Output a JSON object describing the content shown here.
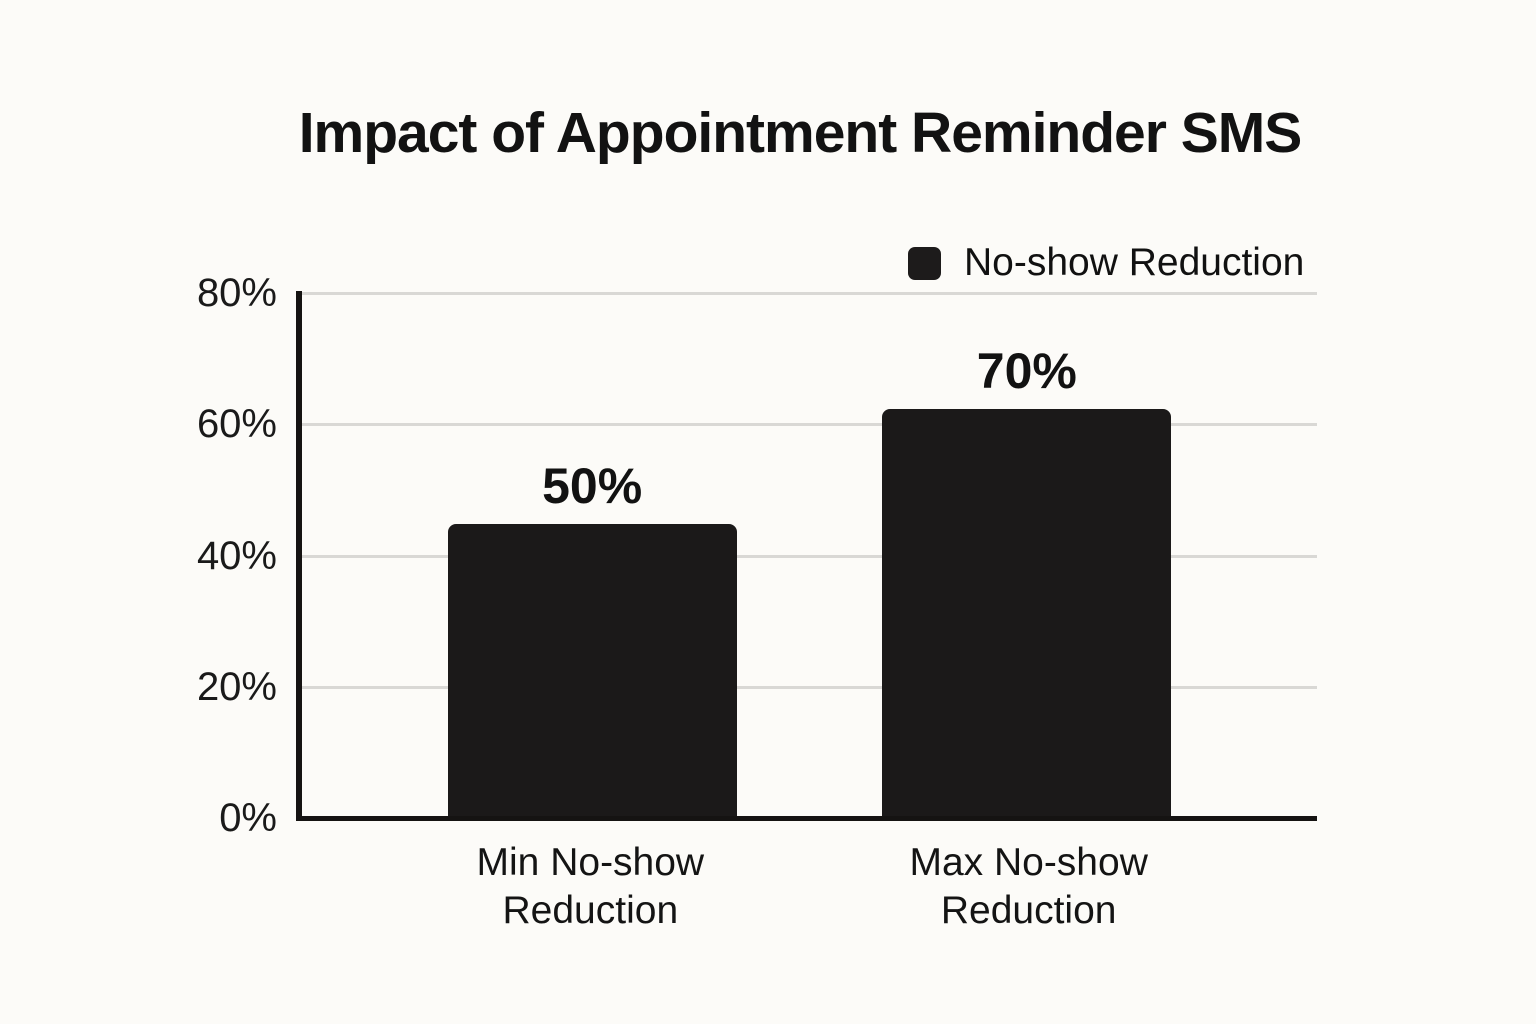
{
  "title": "Impact of Appointment Reminder SMS",
  "legend": {
    "label": "No-show Reduction",
    "swatch_color": "#1d1b1b"
  },
  "chart_data": {
    "type": "bar",
    "title": "Impact of Appointment Reminder SMS",
    "categories": [
      "Min No-show Reduction",
      "Max No-show Reduction"
    ],
    "series": [
      {
        "name": "No-show Reduction",
        "values": [
          50,
          70
        ]
      }
    ],
    "data_labels": [
      "50%",
      "70%"
    ],
    "rendered_bar_values": [
      44.8,
      62.3
    ],
    "xlabel": "",
    "ylabel": "",
    "y_axis": {
      "max": 80,
      "ticks": [
        0,
        20,
        40,
        60,
        80
      ],
      "tick_labels": [
        "0%",
        "20%",
        "40%",
        "60%",
        "80%"
      ],
      "unit": "%"
    },
    "grid": "horizontal-only",
    "legend_position": "top-right",
    "colors": {
      "bar": "#1b1919",
      "gridline": "#d9d8d5",
      "axis": "#151312",
      "background": "#fcfbf8",
      "text": "#141414"
    }
  }
}
